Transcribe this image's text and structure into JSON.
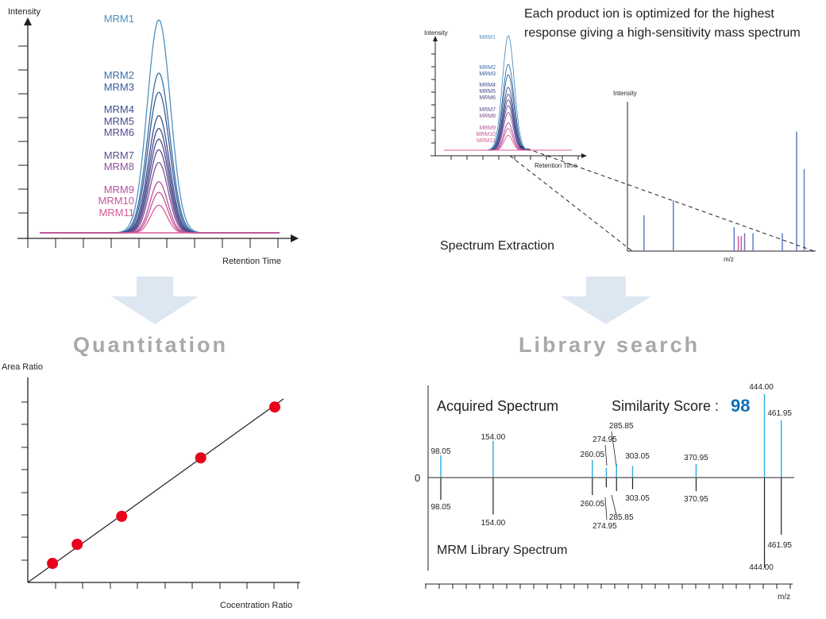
{
  "colors": {
    "mrm": [
      "#4e91c0",
      "#3c6fa6",
      "#375c97",
      "#3e4f8c",
      "#454b8a",
      "#524b8e",
      "#5e4e90",
      "#8a5099",
      "#b1559e",
      "#c9579c",
      "#da5a99"
    ],
    "point": "#e8001c",
    "acquired_peak": "#38aee3",
    "library_peak": "#231f20",
    "score": "#0b6fb7",
    "arrow": "#dde7f2",
    "title_gray": "#a7a9ac"
  },
  "top_left": {
    "y_label": "Intensity",
    "x_label": "Retention Time",
    "mrm_labels": [
      "MRM1",
      "MRM2",
      "MRM3",
      "MRM4",
      "MRM5",
      "MRM6",
      "MRM7",
      "MRM8",
      "MRM9",
      "MRM10",
      "MRM11"
    ],
    "peak_heights": [
      1.0,
      0.75,
      0.66,
      0.55,
      0.49,
      0.44,
      0.39,
      0.33,
      0.24,
      0.19,
      0.13
    ]
  },
  "top_right": {
    "caption_line1": "Each product ion is optimized for the highest",
    "caption_line2": "response giving a high-sensitivity mass spectrum",
    "mini_y_label": "Intensity",
    "mini_x_label": "Retention Time",
    "spec_y_label": "Intensity",
    "spec_x_label": "m/z",
    "extraction_label": "Spectrum Extraction",
    "mini_peaks": [
      {
        "mz": 80,
        "rel": 0.24,
        "color": "#5e7fc0"
      },
      {
        "mz": 150,
        "rel": 0.34,
        "color": "#5e7fc0"
      },
      {
        "mz": 295,
        "rel": 0.16,
        "color": "#5e7fc0"
      },
      {
        "mz": 305,
        "rel": 0.1,
        "color": "#c9579c"
      },
      {
        "mz": 312,
        "rel": 0.1,
        "color": "#c9579c"
      },
      {
        "mz": 320,
        "rel": 0.12,
        "color": "#7a6fb0"
      },
      {
        "mz": 340,
        "rel": 0.12,
        "color": "#5e7fc0"
      },
      {
        "mz": 410,
        "rel": 0.12,
        "color": "#5e7fc0"
      },
      {
        "mz": 444,
        "rel": 0.8,
        "color": "#5e7fc0"
      },
      {
        "mz": 462,
        "rel": 0.55,
        "color": "#5e7fc0"
      }
    ]
  },
  "quantitation": {
    "title": "Quantitation",
    "y_label": "Area Ratio",
    "x_label": "Cocentration Ratio",
    "points": [
      [
        1.0,
        0.75
      ],
      [
        2.0,
        1.5
      ],
      [
        3.8,
        2.6
      ],
      [
        7.0,
        4.9
      ],
      [
        10.0,
        6.9
      ]
    ]
  },
  "library": {
    "title": "Library search",
    "acquired_label": "Acquired Spectrum",
    "library_label": "MRM Library Spectrum",
    "similarity_label": "Similarity Score :",
    "similarity_value": "98",
    "zero_label": "0",
    "x_label": "m/z",
    "peaks": [
      {
        "mz": 98.05,
        "label": "98.05",
        "acq": 0.23,
        "lib": 0.23
      },
      {
        "mz": 154.0,
        "label": "154.00",
        "acq": 0.38,
        "lib": 0.38
      },
      {
        "mz": 260.05,
        "label": "260.05",
        "acq": 0.18,
        "lib": 0.18
      },
      {
        "mz": 274.95,
        "label": "274.95",
        "acq": 0.1,
        "lib": 0.1
      },
      {
        "mz": 285.85,
        "label": "285.85",
        "acq": 0.14,
        "lib": 0.14
      },
      {
        "mz": 303.05,
        "label": "303.05",
        "acq": 0.12,
        "lib": 0.12
      },
      {
        "mz": 370.95,
        "label": "370.95",
        "acq": 0.14,
        "lib": 0.14
      },
      {
        "mz": 444.0,
        "label": "444.00",
        "acq": 0.86,
        "lib": 0.93
      },
      {
        "mz": 461.95,
        "label": "461.95",
        "acq": 0.59,
        "lib": 0.59
      }
    ]
  }
}
